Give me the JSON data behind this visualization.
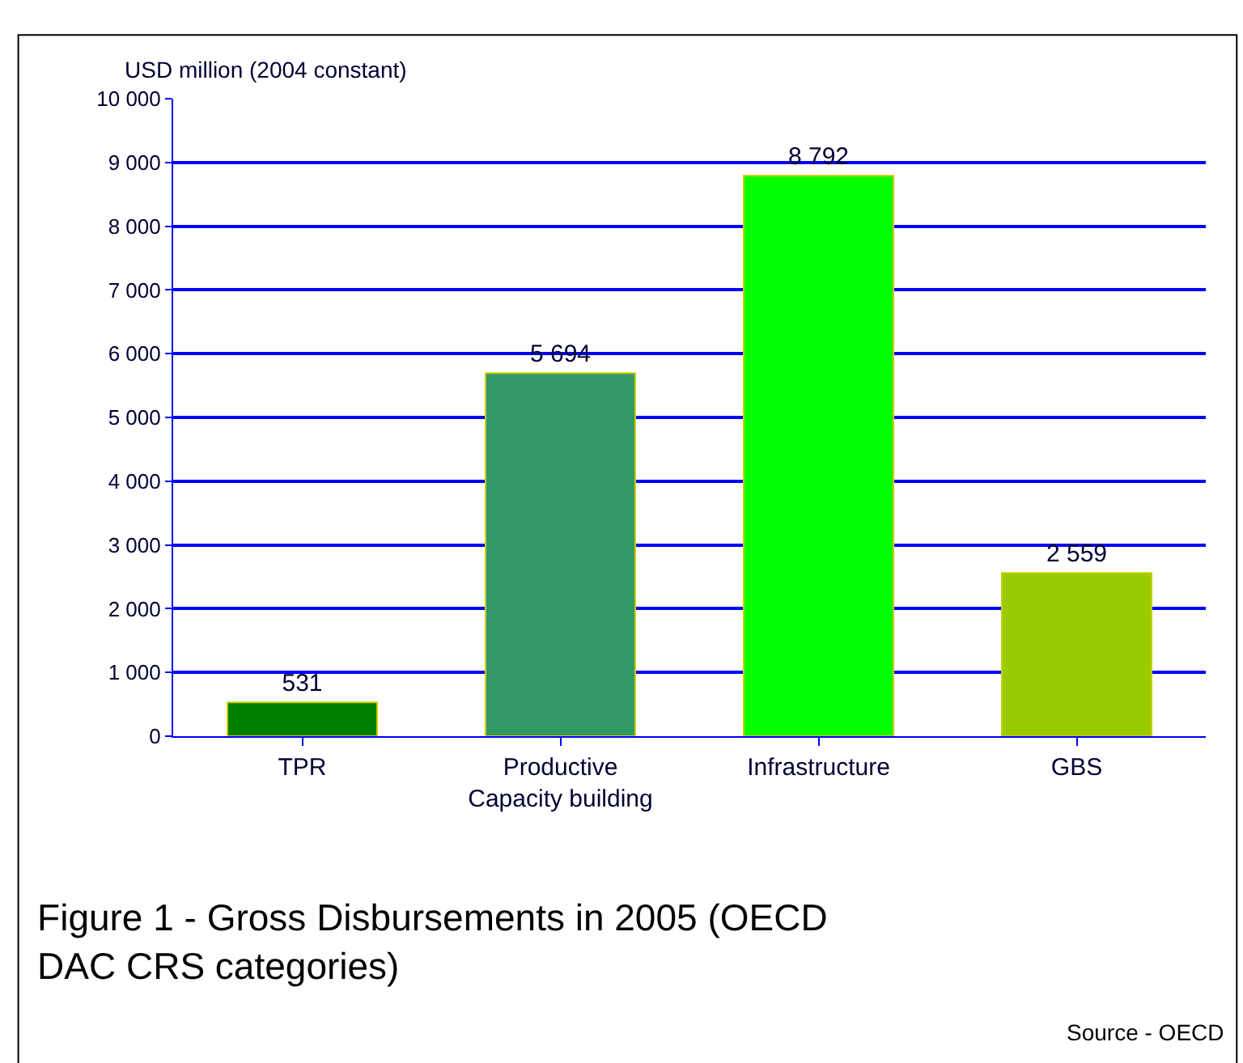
{
  "chart_data": {
    "type": "bar",
    "title": "Figure 1 - Gross Disbursements in 2005 (OECD\nDAC CRS categories)",
    "ylabel": "USD million (2004 constant)",
    "categories": [
      "TPR",
      "Productive\nCapacity building",
      "Infrastructure",
      "GBS"
    ],
    "values": [
      531,
      5694,
      8792,
      2559
    ],
    "colors": [
      "#008000",
      "#339966",
      "#00ff00",
      "#99cc00"
    ],
    "value_labels": [
      "531",
      "5 694",
      "8 792",
      "2 559"
    ],
    "ylim": [
      0,
      10000
    ],
    "yticks": [
      0,
      {
        "value": 1000,
        "label": "1 000"
      },
      {
        "value": 2000,
        "label": "2 000"
      },
      {
        "value": 3000,
        "label": "3 000"
      },
      {
        "value": 4000,
        "label": "4 000"
      },
      {
        "value": 5000,
        "label": "5 000"
      },
      {
        "value": 6000,
        "label": "6 000"
      },
      {
        "value": 7000,
        "label": "7 000"
      },
      {
        "value": 8000,
        "label": "8 000"
      },
      {
        "value": 9000,
        "label": "9 000"
      },
      {
        "value": 10000,
        "label": "10 000"
      }
    ],
    "grid": "y",
    "annotations": [
      "Source - OECD"
    ]
  }
}
